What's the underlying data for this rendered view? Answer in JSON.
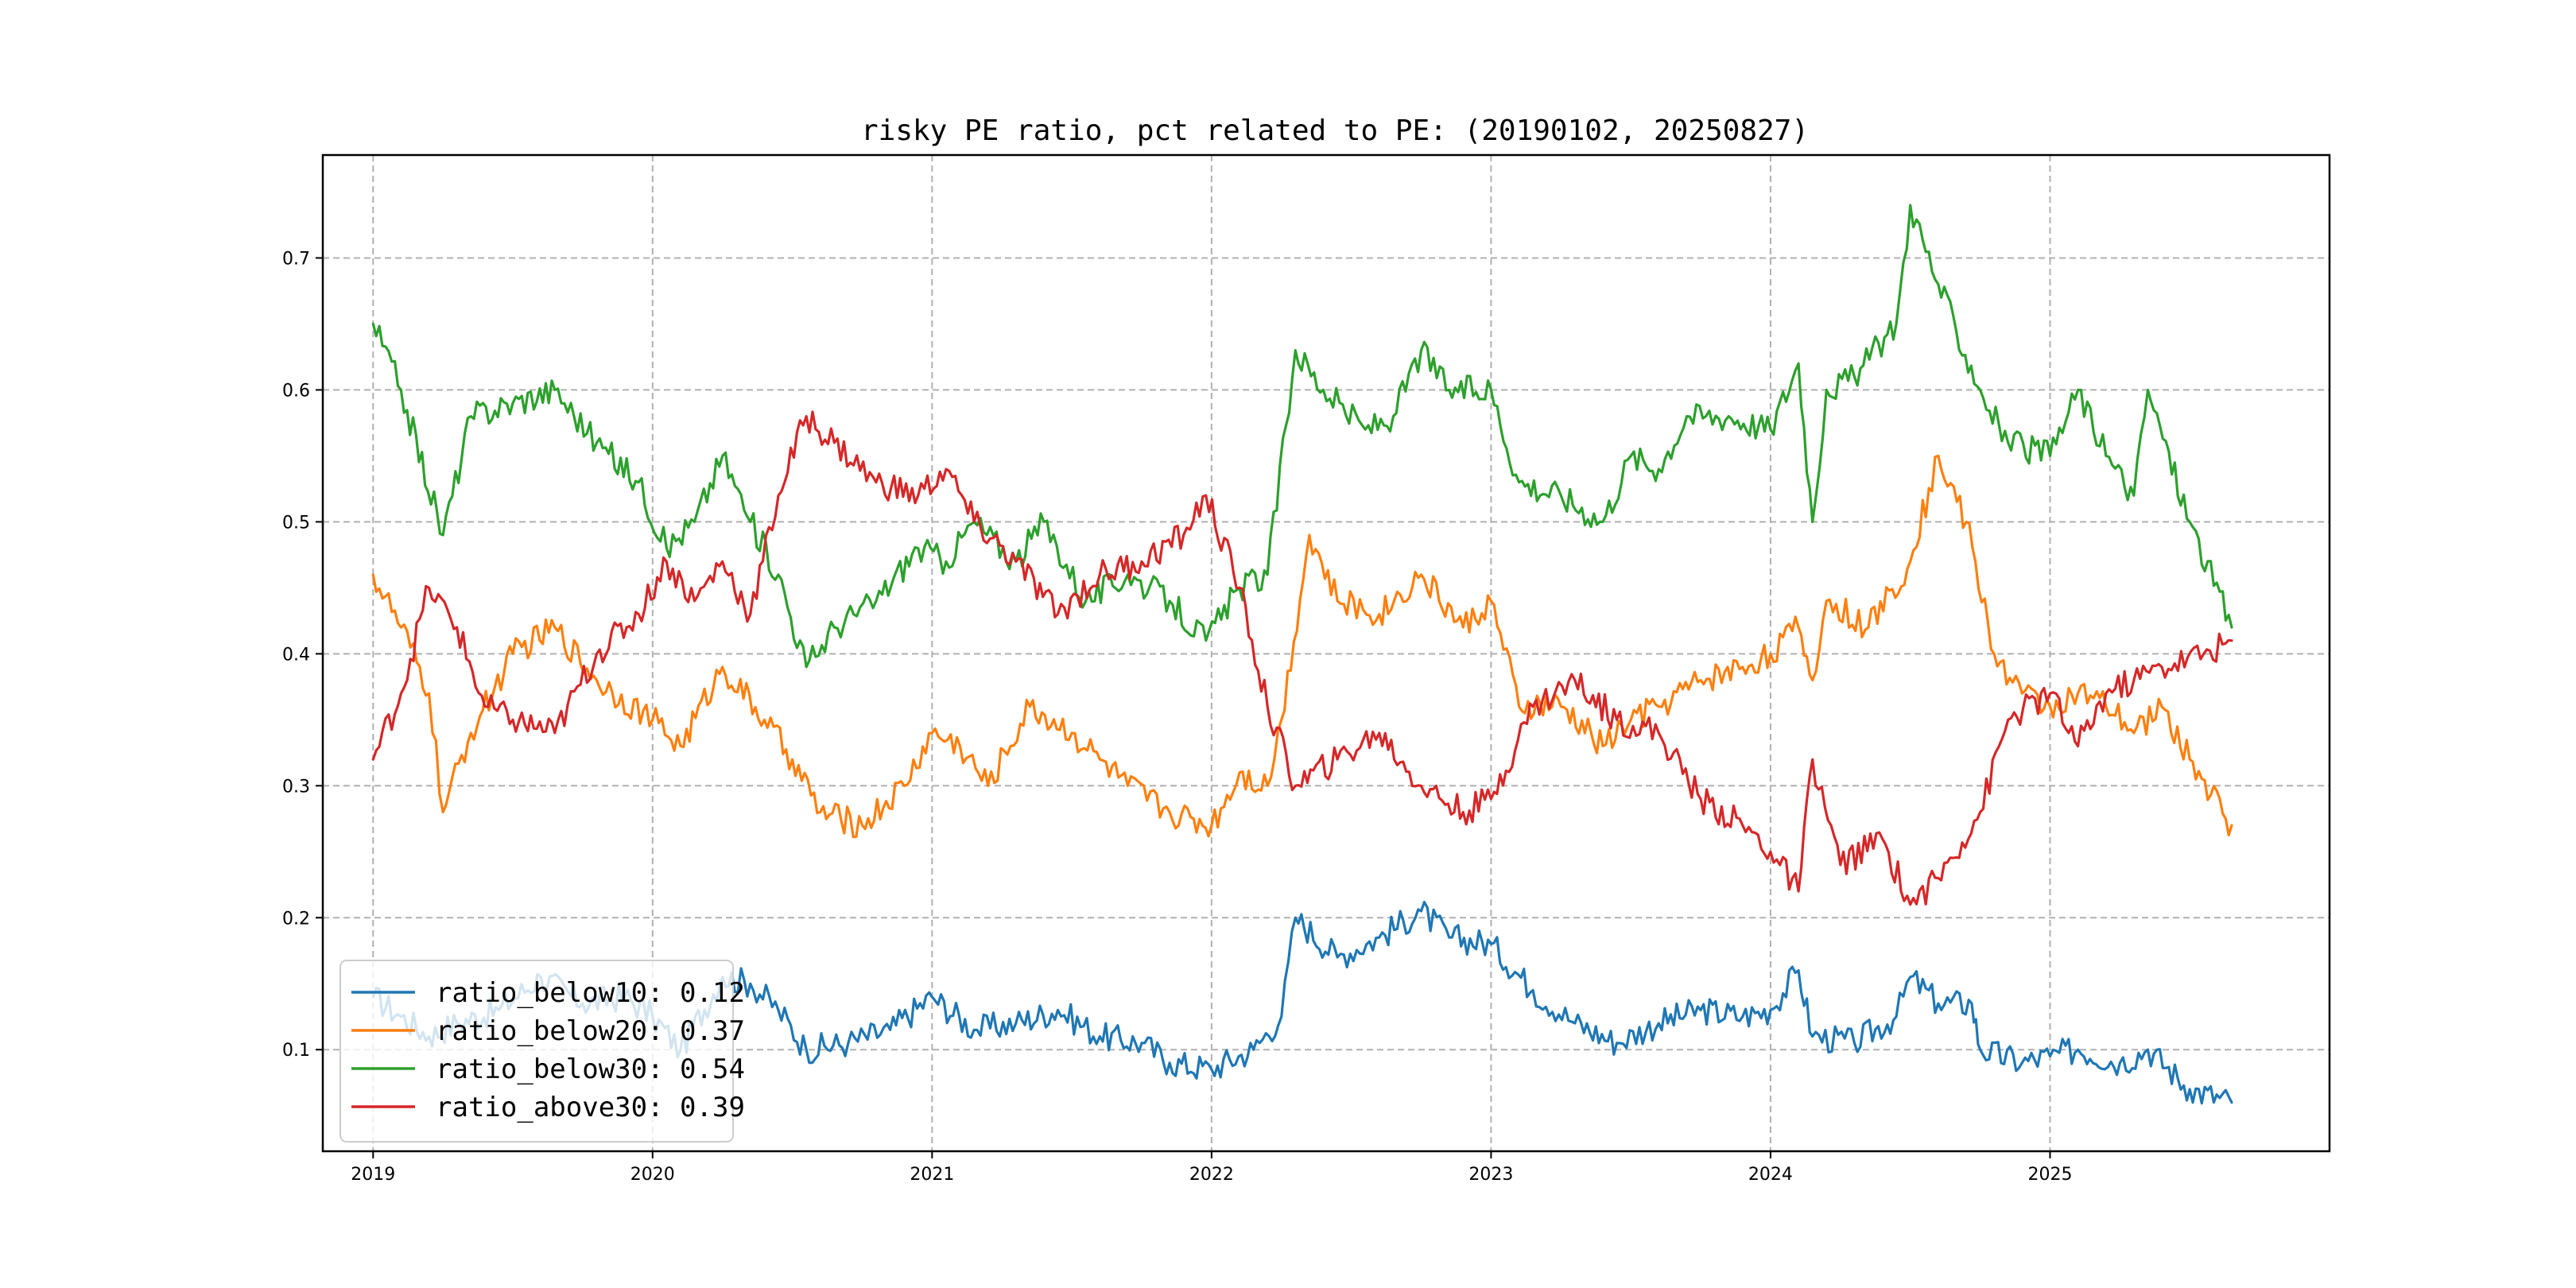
{
  "chart_data": {
    "type": "line",
    "title": "risky PE ratio, pct related to PE: (20190102, 20250827)",
    "xlabel": "",
    "ylabel": "",
    "xlim": [
      2018.82,
      2026.0
    ],
    "ylim": [
      0.023,
      0.778
    ],
    "grid": true,
    "legend_position": "lower-left",
    "xticks": [
      2019,
      2020,
      2021,
      2022,
      2023,
      2024,
      2025
    ],
    "xtick_labels": [
      "2019",
      "2020",
      "2021",
      "2022",
      "2023",
      "2024",
      "2025"
    ],
    "yticks": [
      0.1,
      0.2,
      0.3,
      0.4,
      0.5,
      0.6,
      0.7
    ],
    "ytick_labels": [
      "0.1",
      "0.2",
      "0.3",
      "0.4",
      "0.5",
      "0.6",
      "0.7"
    ],
    "series": [
      {
        "name": "ratio_below10",
        "legend_label": "ratio_below10: 0.12",
        "color": "#1f77b4",
        "x": [
          2019.0,
          2019.1,
          2019.2,
          2019.3,
          2019.45,
          2019.6,
          2019.75,
          2019.9,
          2020.0,
          2020.1,
          2020.25,
          2020.35,
          2020.45,
          2020.55,
          2020.7,
          2020.85,
          2021.0,
          2021.15,
          2021.3,
          2021.45,
          2021.6,
          2021.75,
          2021.85,
          2022.0,
          2022.15,
          2022.25,
          2022.3,
          2022.45,
          2022.6,
          2022.75,
          2022.85,
          2023.0,
          2023.15,
          2023.3,
          2023.45,
          2023.6,
          2023.75,
          2023.9,
          2024.0,
          2024.1,
          2024.15,
          2024.3,
          2024.45,
          2024.5,
          2024.6,
          2024.72,
          2024.75,
          2024.9,
          2025.0,
          2025.1,
          2025.25,
          2025.35,
          2025.5,
          2025.65
        ],
        "y": [
          0.14,
          0.125,
          0.11,
          0.12,
          0.13,
          0.155,
          0.135,
          0.14,
          0.125,
          0.1,
          0.155,
          0.15,
          0.13,
          0.1,
          0.105,
          0.115,
          0.14,
          0.115,
          0.12,
          0.13,
          0.11,
          0.105,
          0.09,
          0.085,
          0.1,
          0.125,
          0.2,
          0.17,
          0.185,
          0.205,
          0.185,
          0.18,
          0.145,
          0.12,
          0.105,
          0.12,
          0.13,
          0.125,
          0.13,
          0.16,
          0.11,
          0.105,
          0.125,
          0.155,
          0.135,
          0.135,
          0.1,
          0.09,
          0.095,
          0.1,
          0.09,
          0.1,
          0.07,
          0.06
        ]
      },
      {
        "name": "ratio_below20",
        "legend_label": "ratio_below20: 0.37",
        "color": "#ff7f0e",
        "x": [
          2019.0,
          2019.1,
          2019.2,
          2019.25,
          2019.35,
          2019.5,
          2019.65,
          2019.8,
          2020.0,
          2020.1,
          2020.25,
          2020.4,
          2020.5,
          2020.6,
          2020.75,
          2020.9,
          2021.0,
          2021.1,
          2021.2,
          2021.35,
          2021.5,
          2021.6,
          2021.7,
          2021.85,
          2022.0,
          2022.1,
          2022.2,
          2022.25,
          2022.35,
          2022.45,
          2022.6,
          2022.75,
          2022.9,
          2023.0,
          2023.1,
          2023.25,
          2023.4,
          2023.5,
          2023.6,
          2023.75,
          2023.9,
          2024.0,
          2024.1,
          2024.15,
          2024.2,
          2024.35,
          2024.5,
          2024.6,
          2024.7,
          2024.8,
          2024.9,
          2025.0,
          2025.1,
          2025.2,
          2025.3,
          2025.4,
          2025.5,
          2025.65
        ],
        "y": [
          0.46,
          0.42,
          0.37,
          0.28,
          0.34,
          0.4,
          0.42,
          0.38,
          0.35,
          0.33,
          0.39,
          0.35,
          0.32,
          0.28,
          0.27,
          0.3,
          0.34,
          0.33,
          0.3,
          0.36,
          0.34,
          0.32,
          0.3,
          0.28,
          0.27,
          0.31,
          0.3,
          0.35,
          0.49,
          0.44,
          0.43,
          0.46,
          0.42,
          0.44,
          0.36,
          0.36,
          0.33,
          0.35,
          0.36,
          0.38,
          0.39,
          0.4,
          0.42,
          0.38,
          0.44,
          0.42,
          0.47,
          0.55,
          0.5,
          0.4,
          0.37,
          0.36,
          0.37,
          0.36,
          0.34,
          0.36,
          0.32,
          0.27
        ]
      },
      {
        "name": "ratio_below30",
        "legend_label": "ratio_below30: 0.54",
        "color": "#2ca02c",
        "x": [
          2019.0,
          2019.1,
          2019.25,
          2019.35,
          2019.5,
          2019.65,
          2019.8,
          2019.95,
          2020.05,
          2020.15,
          2020.25,
          2020.35,
          2020.45,
          2020.55,
          2020.65,
          2020.8,
          2020.95,
          2021.05,
          2021.15,
          2021.3,
          2021.4,
          2021.55,
          2021.7,
          2021.85,
          2021.98,
          2022.1,
          2022.2,
          2022.3,
          2022.4,
          2022.55,
          2022.65,
          2022.75,
          2022.85,
          2023.0,
          2023.1,
          2023.25,
          2023.4,
          2023.5,
          2023.6,
          2023.7,
          2023.85,
          2024.0,
          2024.1,
          2024.15,
          2024.2,
          2024.3,
          2024.45,
          2024.5,
          2024.6,
          2024.75,
          2024.85,
          2025.0,
          2025.1,
          2025.2,
          2025.3,
          2025.35,
          2025.5,
          2025.65
        ],
        "y": [
          0.65,
          0.6,
          0.49,
          0.58,
          0.59,
          0.6,
          0.56,
          0.53,
          0.48,
          0.5,
          0.55,
          0.5,
          0.46,
          0.39,
          0.42,
          0.44,
          0.48,
          0.47,
          0.5,
          0.47,
          0.5,
          0.44,
          0.46,
          0.44,
          0.41,
          0.45,
          0.46,
          0.63,
          0.6,
          0.57,
          0.58,
          0.63,
          0.6,
          0.6,
          0.53,
          0.52,
          0.5,
          0.55,
          0.54,
          0.58,
          0.58,
          0.57,
          0.62,
          0.5,
          0.6,
          0.61,
          0.65,
          0.74,
          0.68,
          0.6,
          0.56,
          0.55,
          0.6,
          0.55,
          0.52,
          0.6,
          0.5,
          0.42
        ]
      },
      {
        "name": "ratio_above30",
        "legend_label": "ratio_above30: 0.39",
        "color": "#d62728",
        "x": [
          2019.0,
          2019.1,
          2019.2,
          2019.3,
          2019.4,
          2019.5,
          2019.65,
          2019.8,
          2019.95,
          2020.05,
          2020.15,
          2020.25,
          2020.35,
          2020.45,
          2020.55,
          2020.65,
          2020.8,
          2020.95,
          2021.05,
          2021.15,
          2021.3,
          2021.45,
          2021.6,
          2021.75,
          2021.9,
          2021.98,
          2022.1,
          2022.2,
          2022.3,
          2022.45,
          2022.6,
          2022.75,
          2022.9,
          2023.0,
          2023.15,
          2023.3,
          2023.45,
          2023.6,
          2023.75,
          2023.9,
          2024.0,
          2024.1,
          2024.15,
          2024.25,
          2024.4,
          2024.5,
          2024.6,
          2024.75,
          2024.85,
          2025.0,
          2025.1,
          2025.2,
          2025.3,
          2025.4,
          2025.55,
          2025.65
        ],
        "y": [
          0.32,
          0.37,
          0.45,
          0.42,
          0.36,
          0.35,
          0.34,
          0.4,
          0.43,
          0.47,
          0.44,
          0.47,
          0.43,
          0.52,
          0.58,
          0.56,
          0.53,
          0.52,
          0.54,
          0.5,
          0.47,
          0.43,
          0.46,
          0.47,
          0.49,
          0.52,
          0.45,
          0.36,
          0.3,
          0.32,
          0.34,
          0.3,
          0.28,
          0.29,
          0.36,
          0.38,
          0.35,
          0.34,
          0.29,
          0.27,
          0.25,
          0.22,
          0.32,
          0.24,
          0.26,
          0.21,
          0.23,
          0.28,
          0.35,
          0.37,
          0.33,
          0.37,
          0.38,
          0.39,
          0.4,
          0.41
        ]
      }
    ]
  }
}
